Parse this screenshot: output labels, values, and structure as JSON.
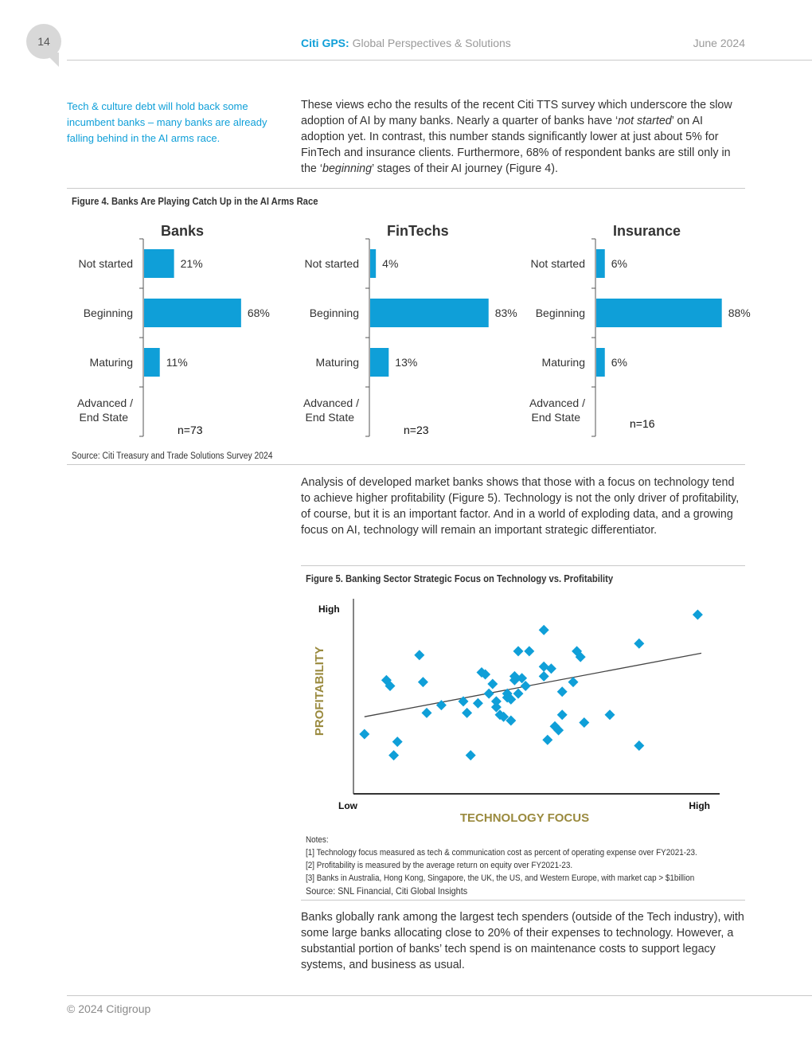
{
  "header": {
    "page_number": "14",
    "brand": "Citi GPS:",
    "brand_sub": "Global Perspectives & Solutions",
    "date": "June 2024"
  },
  "side_note": "Tech & culture debt will hold back some incumbent banks – many banks are already falling behind in the AI arms race.",
  "para1": {
    "t1": "These views echo the results of the recent Citi TTS survey which underscore the slow adoption of AI by many banks. Nearly a quarter of banks have ‘",
    "i1": "not started",
    "t2": "’ on AI adoption yet. In contrast, this number stands significantly lower at just about 5% for FinTech and insurance clients. Furthermore, 68% of respondent banks are still only in the ‘",
    "i2": "beginning",
    "t3": "’ stages of their AI journey (Figure 4)."
  },
  "figure4": {
    "title": "Figure 4. Banks Are Playing Catch Up in the AI Arms Race",
    "source": "Source: Citi Treasury and Trade Solutions Survey 2024"
  },
  "para2": "Analysis of developed market banks shows that those with a focus on technology tend to achieve higher profitability (Figure 5). Technology is not the only driver of profitability, of course, but it is an important factor. And in a world of exploding data, and a growing focus on AI, technology will remain an important strategic differentiator.",
  "figure5": {
    "title": "Figure 5. Banking Sector Strategic Focus on Technology vs. Profitability",
    "notes": [
      "Notes:",
      "[1] Technology focus measured as tech & communication cost as percent of operating expense over FY2021-23.",
      "[2] Profitability is measured by the average return on equity over FY2021-23.",
      "[3] Banks in Australia, Hong Kong, Singapore, the UK, the US, and Western Europe, with market cap > $1billion"
    ],
    "source": "Source: SNL Financial, Citi Global Insights"
  },
  "para3": "Banks globally rank among the largest tech spenders (outside of the Tech industry), with some large banks allocating close to 20% of their expenses to technology. However, a substantial portion of banks’ tech spend is on maintenance costs to support legacy systems, and business as usual.",
  "footer": "© 2024 Citigroup",
  "colors": {
    "accent": "#0f9fd8",
    "axis_title": "#9a8a3e"
  },
  "chart_data": [
    {
      "type": "bar",
      "orientation": "horizontal",
      "title": "Banks",
      "categories": [
        "Not started",
        "Beginning",
        "Maturing",
        "Advanced / End State"
      ],
      "values": [
        21,
        68,
        11,
        0
      ],
      "value_labels": [
        "21%",
        "68%",
        "11%",
        ""
      ],
      "note": "n=73"
    },
    {
      "type": "bar",
      "orientation": "horizontal",
      "title": "FinTechs",
      "categories": [
        "Not started",
        "Beginning",
        "Maturing",
        "Advanced / End State"
      ],
      "values": [
        4,
        83,
        13,
        0
      ],
      "value_labels": [
        "4%",
        "83%",
        "13%",
        ""
      ],
      "note": "n=23"
    },
    {
      "type": "bar",
      "orientation": "horizontal",
      "title": "Insurance",
      "categories": [
        "Not started",
        "Beginning",
        "Maturing",
        "Advanced / End State"
      ],
      "values": [
        6,
        88,
        6,
        0
      ],
      "value_labels": [
        "6%",
        "88%",
        "6%",
        ""
      ],
      "note": "n=16"
    },
    {
      "type": "scatter",
      "xlabel": "TECHNOLOGY FOCUS",
      "ylabel": "PROFITABILITY",
      "x_ticks": [
        "Low",
        "High"
      ],
      "y_ticks": [
        "High"
      ],
      "xlim": [
        0,
        100
      ],
      "ylim": [
        0,
        100
      ],
      "trendline": [
        [
          3,
          40
        ],
        [
          95,
          73
        ]
      ],
      "points": [
        [
          3,
          31
        ],
        [
          9,
          59
        ],
        [
          10,
          56
        ],
        [
          11,
          20
        ],
        [
          12,
          27
        ],
        [
          18,
          72
        ],
        [
          19,
          58
        ],
        [
          20,
          42
        ],
        [
          24,
          46
        ],
        [
          30,
          48
        ],
        [
          31,
          42
        ],
        [
          32,
          20
        ],
        [
          34,
          47
        ],
        [
          35,
          63
        ],
        [
          36,
          62
        ],
        [
          37,
          52
        ],
        [
          38,
          57
        ],
        [
          39,
          45
        ],
        [
          39,
          48
        ],
        [
          40,
          41
        ],
        [
          41,
          40
        ],
        [
          42,
          50
        ],
        [
          42,
          52
        ],
        [
          43,
          49
        ],
        [
          43,
          38
        ],
        [
          44,
          59
        ],
        [
          44,
          61
        ],
        [
          45,
          74
        ],
        [
          45,
          52
        ],
        [
          46,
          60
        ],
        [
          47,
          56
        ],
        [
          48,
          74
        ],
        [
          52,
          85
        ],
        [
          52,
          66
        ],
        [
          52,
          61
        ],
        [
          53,
          28
        ],
        [
          54,
          65
        ],
        [
          55,
          35
        ],
        [
          56,
          33
        ],
        [
          57,
          41
        ],
        [
          57,
          53
        ],
        [
          60,
          58
        ],
        [
          61,
          74
        ],
        [
          62,
          71
        ],
        [
          63,
          37
        ],
        [
          70,
          41
        ],
        [
          78,
          78
        ],
        [
          78,
          25
        ],
        [
          94,
          93
        ]
      ]
    }
  ]
}
